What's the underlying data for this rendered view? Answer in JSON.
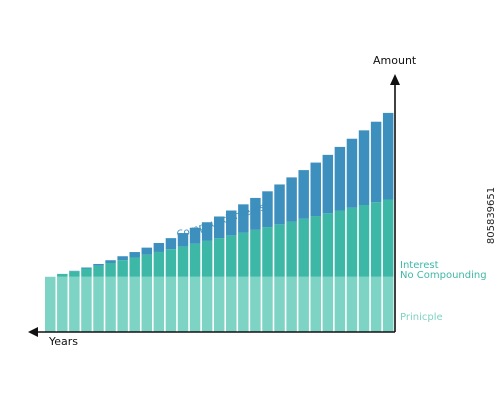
{
  "chart_data": {
    "type": "bar",
    "stacked": true,
    "axis_labels": {
      "x": "Years",
      "y": "Amount"
    },
    "series": [
      {
        "name": "Prinicple",
        "color": "#7dd3c4",
        "values": [
          1,
          1,
          1,
          1,
          1,
          1,
          1,
          1,
          1,
          1,
          1,
          1,
          1,
          1,
          1,
          1,
          1,
          1,
          1,
          1,
          1,
          1,
          1,
          1,
          1,
          1,
          1,
          1,
          1
        ]
      },
      {
        "name": "Interest\nNo Compounding",
        "color": "#3db8a7",
        "values": [
          0,
          0.05,
          0.1,
          0.15,
          0.2,
          0.25,
          0.3,
          0.35,
          0.4,
          0.45,
          0.5,
          0.55,
          0.6,
          0.65,
          0.7,
          0.75,
          0.8,
          0.85,
          0.9,
          0.95,
          1,
          1.05,
          1.1,
          1.15,
          1.2,
          1.25,
          1.3,
          1.35,
          1.4
        ]
      },
      {
        "name": "Compound Interest",
        "color": "#3d8fbd",
        "values": [
          0,
          0.002,
          0.008,
          0.018,
          0.032,
          0.05,
          0.072,
          0.098,
          0.128,
          0.162,
          0.2,
          0.242,
          0.288,
          0.338,
          0.392,
          0.45,
          0.512,
          0.578,
          0.648,
          0.722,
          0.8,
          0.882,
          0.968,
          1.058,
          1.152,
          1.25,
          1.352,
          1.458,
          1.568
        ]
      }
    ],
    "ylim": [
      0,
      4.6
    ],
    "grid": false,
    "legend": "right"
  },
  "labels": {
    "compound_interest": "Compound Interest",
    "interest_line1": "Interest",
    "interest_line2": "No Compounding",
    "principle": "Prinicple"
  },
  "stock_id": "805839651",
  "colors": {
    "axis": "#111111",
    "principle_label": "#7dd3c4",
    "interest_label": "#3db8a7",
    "compound_label": "#3d8fbd"
  }
}
